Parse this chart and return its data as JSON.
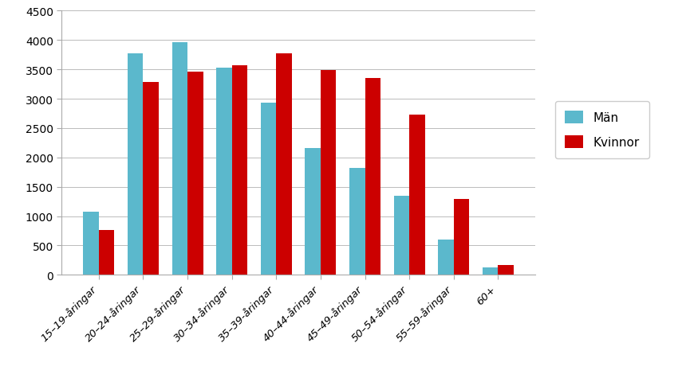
{
  "categories": [
    "15–19-åringar",
    "20–24-åringar",
    "25–29-åringar",
    "30–34-åringar",
    "35–39-åringar",
    "40–44-åringar",
    "45–49-åringar",
    "50–54-åringar",
    "55–59-åringar",
    "60+"
  ],
  "man_values": [
    1080,
    3770,
    3970,
    3530,
    2930,
    2160,
    1820,
    1340,
    600,
    120
  ],
  "kvinnor_values": [
    760,
    3290,
    3460,
    3570,
    3780,
    3490,
    3360,
    2730,
    1290,
    170
  ],
  "man_color": "#5BB8CC",
  "kvinnor_color": "#CC0000",
  "ylim": [
    0,
    4500
  ],
  "yticks": [
    0,
    500,
    1000,
    1500,
    2000,
    2500,
    3000,
    3500,
    4000,
    4500
  ],
  "legend_labels": [
    "Män",
    "Kvinnor"
  ],
  "bar_width": 0.35,
  "background_color": "#ffffff",
  "grid_color": "#bbbbbb"
}
